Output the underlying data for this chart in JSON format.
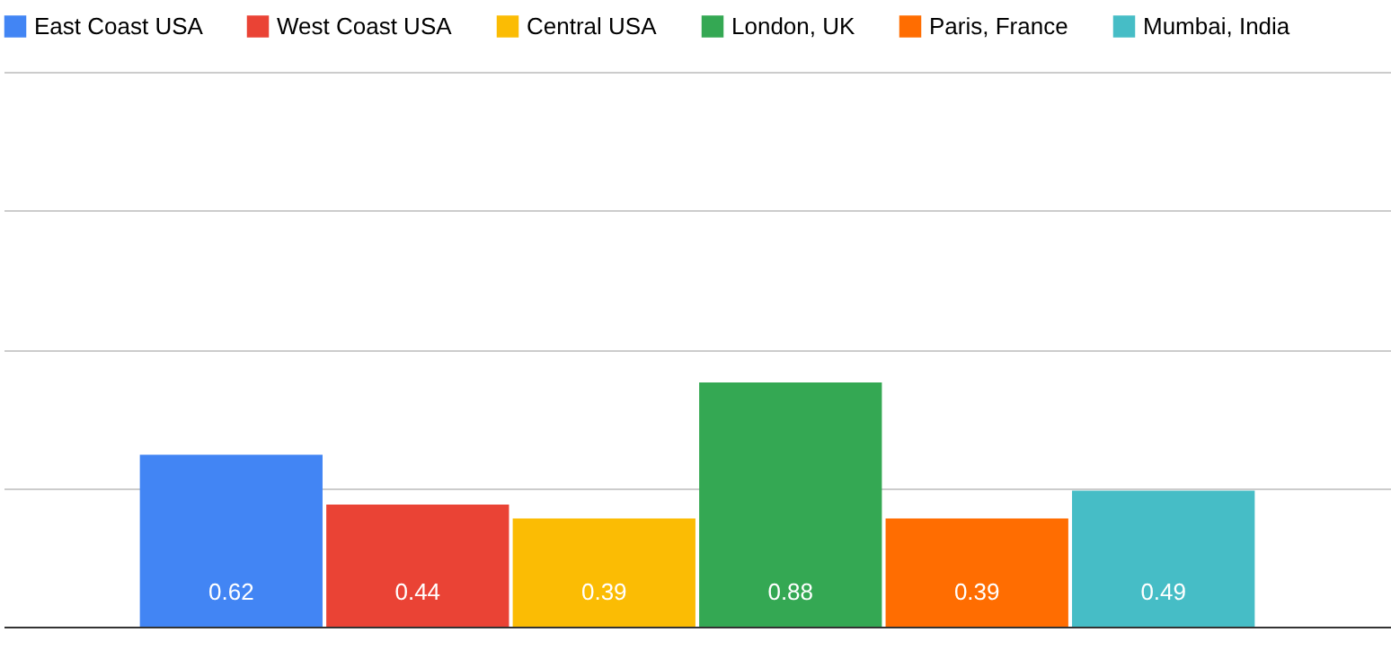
{
  "chart_data": {
    "type": "bar",
    "categories": [
      null
    ],
    "series": [
      {
        "name": "East Coast USA",
        "color": "#4285f4",
        "values": [
          0.62
        ]
      },
      {
        "name": "West Coast USA",
        "color": "#ea4335",
        "values": [
          0.44
        ]
      },
      {
        "name": "Central USA",
        "color": "#fbbc04",
        "values": [
          0.39
        ]
      },
      {
        "name": "London, UK",
        "color": "#34a853",
        "values": [
          0.88
        ]
      },
      {
        "name": "Paris, France",
        "color": "#ff6d01",
        "values": [
          0.39
        ]
      },
      {
        "name": "Mumbai, India",
        "color": "#46bdc6",
        "values": [
          0.49
        ]
      }
    ],
    "ylim": [
      0,
      2
    ],
    "yticks": [
      {
        "value": 0,
        "label": null
      },
      {
        "value": 0.5,
        "label": null
      },
      {
        "value": 1,
        "label": null
      },
      {
        "value": 1.5,
        "label": null
      },
      {
        "value": 2,
        "label": null
      }
    ],
    "grid": "y",
    "legend": "top",
    "data_labels": true
  }
}
